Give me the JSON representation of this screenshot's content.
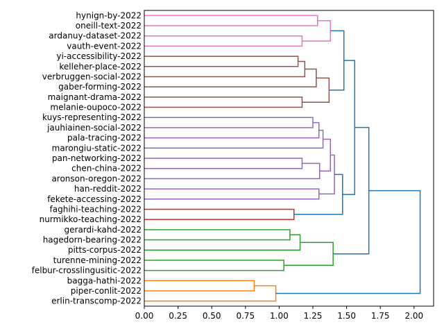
{
  "chart_data": {
    "type": "dendrogram",
    "orientation": "right",
    "title": "",
    "xlabel": "",
    "ylabel": "",
    "xlim": [
      0,
      2.145
    ],
    "x_ticks": [
      "0.00",
      "0.25",
      "0.50",
      "0.75",
      "1.00",
      "1.25",
      "1.50",
      "1.75",
      "2.00"
    ],
    "x_tick_values": [
      0,
      0.25,
      0.5,
      0.75,
      1.0,
      1.25,
      1.5,
      1.75,
      2.0
    ],
    "leaves": [
      "hynign-by-2022",
      "oneill-text-2022",
      "ardanuy-dataset-2022",
      "vauth-event-2022",
      "yi-accessibility-2022",
      "kelleher-place-2022",
      "verbruggen-social-2022",
      "gaber-forming-2022",
      "maignant-drama-2022",
      "melanie-oupoco-2022",
      "kuys-representing-2022",
      "jauhiainen-social-2022",
      "pala-tracing-2022",
      "marongiu-static-2022",
      "pan-networking-2022",
      "chen-china-2022",
      "aronson-oregon-2022",
      "han-reddit-2022",
      "fekete-accessing-2022",
      "faghihi-teaching-2022",
      "nurmikko-teaching-2022",
      "gerardi-kahd-2022",
      "hagedorn-bearing-2022",
      "pitts-corpus-2022",
      "turenne-mining-2022",
      "felbur-crosslingusitic-2022",
      "bagga-hathi-2022",
      "piper-conlit-2022",
      "erlin-transcomp-2022"
    ],
    "colors": {
      "pink": "#e377c2",
      "brown": "#8c564b",
      "purple": "#9467bd",
      "red": "#d62728",
      "green": "#2ca02c",
      "orange": "#ff7f0e",
      "blue": "#1f77b4"
    },
    "tree": {
      "h": 2.045,
      "c": "blue",
      "k": [
        {
          "h": 1.665,
          "c": "blue",
          "k": [
            {
              "h": 1.56,
              "c": "blue",
              "k": [
                {
                  "h": 1.48,
                  "c": "blue",
                  "k": [
                    {
                      "h": 1.38,
                      "c": "pink",
                      "k": [
                        {
                          "h": 1.285,
                          "c": "pink",
                          "k": [
                            0,
                            1
                          ]
                        },
                        {
                          "h": 1.17,
                          "c": "pink",
                          "k": [
                            2,
                            3
                          ]
                        }
                      ]
                    },
                    {
                      "h": 1.37,
                      "c": "brown",
                      "k": [
                        {
                          "h": 1.275,
                          "c": "brown",
                          "k": [
                            {
                              "h": 1.19,
                              "c": "brown",
                              "k": [
                                {
                                  "h": 1.14,
                                  "c": "brown",
                                  "k": [
                                    4,
                                    5
                                  ]
                                },
                                6
                              ]
                            },
                            7
                          ]
                        },
                        {
                          "h": 1.17,
                          "c": "brown",
                          "k": [
                            8,
                            9
                          ]
                        }
                      ]
                    }
                  ]
                },
                {
                  "h": 1.47,
                  "c": "blue",
                  "k": [
                    {
                      "h": 1.41,
                      "c": "purple",
                      "k": [
                        {
                          "h": 1.38,
                          "c": "purple",
                          "k": [
                            {
                              "h": 1.325,
                              "c": "purple",
                              "k": [
                                {
                                  "h": 1.295,
                                  "c": "purple",
                                  "k": [
                                    {
                                      "h": 1.25,
                                      "c": "purple",
                                      "k": [
                                        10,
                                        11
                                      ]
                                    },
                                    12
                                  ]
                                },
                                13
                              ]
                            },
                            {
                              "h": 1.3,
                              "c": "purple",
                              "k": [
                                {
                                  "h": 1.17,
                                  "c": "purple",
                                  "k": [
                                    14,
                                    15
                                  ]
                                },
                                16
                              ]
                            }
                          ]
                        },
                        {
                          "h": 1.295,
                          "c": "purple",
                          "k": [
                            17,
                            18
                          ]
                        }
                      ]
                    },
                    {
                      "h": 1.11,
                      "c": "red",
                      "k": [
                        19,
                        20
                      ]
                    }
                  ]
                }
              ]
            },
            {
              "h": 1.4,
              "c": "green",
              "k": [
                {
                  "h": 1.155,
                  "c": "green",
                  "k": [
                    {
                      "h": 1.08,
                      "c": "green",
                      "k": [
                        21,
                        22
                      ]
                    },
                    23
                  ]
                },
                {
                  "h": 1.035,
                  "c": "green",
                  "k": [
                    24,
                    25
                  ]
                }
              ]
            }
          ]
        },
        {
          "h": 0.975,
          "c": "orange",
          "k": [
            {
              "h": 0.815,
              "c": "orange",
              "k": [
                26,
                27
              ]
            },
            28
          ]
        }
      ]
    }
  }
}
